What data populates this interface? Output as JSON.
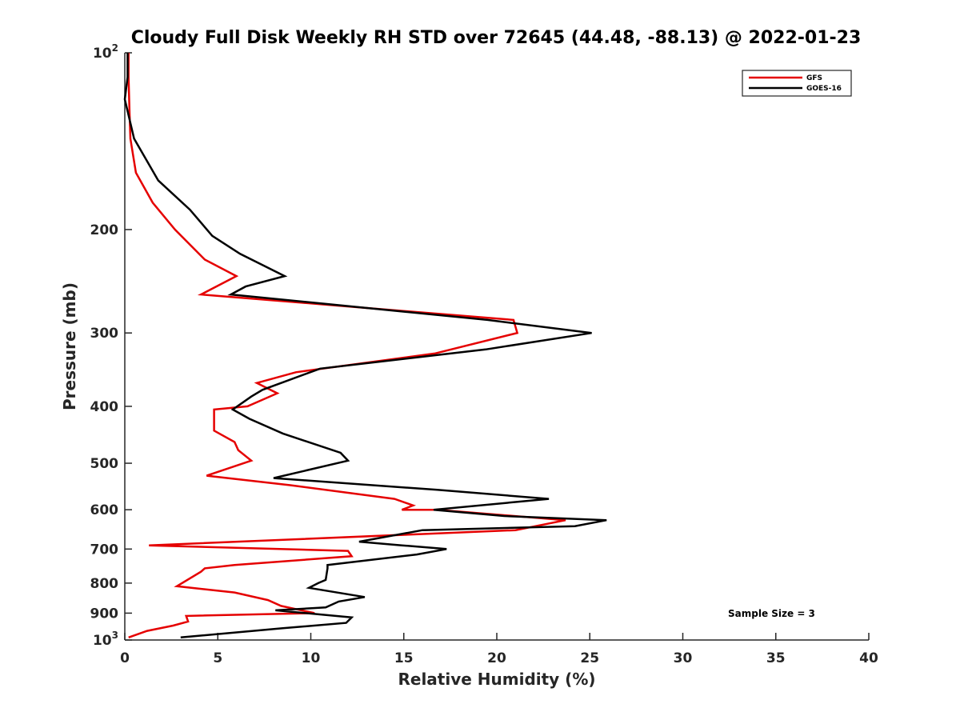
{
  "chart_data": {
    "type": "line",
    "title": "Cloudy Full Disk Weekly RH STD over 72645 (44.48, -88.13) @ 2022-01-23",
    "xlabel": "Relative Humidity (%)",
    "ylabel": "Pressure (mb)",
    "xlim": [
      0,
      40
    ],
    "ylim": [
      100,
      1000
    ],
    "y_scale": "log",
    "y_reversed": true,
    "grid": false,
    "legend_position": "top-right",
    "x_ticks": [
      "0",
      "5",
      "10",
      "15",
      "20",
      "25",
      "30",
      "35",
      "40"
    ],
    "y_ticks": [
      {
        "value": 100,
        "base": "10",
        "exp": "2"
      },
      {
        "value": 200,
        "label": "200"
      },
      {
        "value": 300,
        "label": "300"
      },
      {
        "value": 400,
        "label": "400"
      },
      {
        "value": 500,
        "label": "500"
      },
      {
        "value": 600,
        "label": "600"
      },
      {
        "value": 700,
        "label": "700"
      },
      {
        "value": 800,
        "label": "800"
      },
      {
        "value": 900,
        "label": "900"
      },
      {
        "value": 1000,
        "base": "10",
        "exp": "3"
      }
    ],
    "annotation": "Sample Size = 3",
    "series": [
      {
        "name": "GFS",
        "color": "#e50000",
        "points": [
          [
            0.2,
            100
          ],
          [
            0.2,
            110
          ],
          [
            0.25,
            125
          ],
          [
            0.3,
            140
          ],
          [
            0.6,
            160
          ],
          [
            1.5,
            180
          ],
          [
            2.7,
            200
          ],
          [
            4.3,
            225
          ],
          [
            6.0,
            240
          ],
          [
            4.1,
            258
          ],
          [
            20.9,
            285
          ],
          [
            21.1,
            300
          ],
          [
            16.7,
            325
          ],
          [
            9.2,
            350
          ],
          [
            7.1,
            365
          ],
          [
            8.2,
            380
          ],
          [
            6.6,
            400
          ],
          [
            4.8,
            405
          ],
          [
            4.8,
            420
          ],
          [
            4.8,
            440
          ],
          [
            5.9,
            460
          ],
          [
            6.1,
            475
          ],
          [
            6.8,
            495
          ],
          [
            4.4,
            525
          ],
          [
            8.9,
            545
          ],
          [
            14.5,
            575
          ],
          [
            15.5,
            590
          ],
          [
            14.9,
            600
          ],
          [
            16.8,
            600
          ],
          [
            23.7,
            625
          ],
          [
            21.0,
            650
          ],
          [
            1.3,
            690
          ],
          [
            12.0,
            705
          ],
          [
            12.2,
            720
          ],
          [
            5.9,
            745
          ],
          [
            4.3,
            755
          ],
          [
            4.1,
            765
          ],
          [
            2.8,
            810
          ],
          [
            5.9,
            830
          ],
          [
            7.7,
            855
          ],
          [
            8.4,
            875
          ],
          [
            10.2,
            900
          ],
          [
            3.3,
            910
          ],
          [
            3.4,
            930
          ],
          [
            2.6,
            945
          ],
          [
            1.2,
            965
          ],
          [
            0.2,
            990
          ]
        ]
      },
      {
        "name": "GOES-16",
        "color": "#000000",
        "points": [
          [
            0.15,
            100
          ],
          [
            0.15,
            110
          ],
          [
            0.0,
            120
          ],
          [
            0.5,
            140
          ],
          [
            1.8,
            165
          ],
          [
            3.5,
            185
          ],
          [
            4.7,
            205
          ],
          [
            6.2,
            220
          ],
          [
            8.6,
            240
          ],
          [
            6.5,
            250
          ],
          [
            5.7,
            258
          ],
          [
            19.5,
            285
          ],
          [
            25.1,
            300
          ],
          [
            19.4,
            320
          ],
          [
            10.5,
            345
          ],
          [
            7.4,
            375
          ],
          [
            6.8,
            385
          ],
          [
            5.8,
            405
          ],
          [
            6.7,
            420
          ],
          [
            8.5,
            445
          ],
          [
            11.6,
            480
          ],
          [
            12.0,
            495
          ],
          [
            8.0,
            530
          ],
          [
            16.8,
            555
          ],
          [
            22.8,
            575
          ],
          [
            16.6,
            600
          ],
          [
            20.4,
            615
          ],
          [
            25.9,
            625
          ],
          [
            24.2,
            640
          ],
          [
            16.0,
            650
          ],
          [
            12.6,
            680
          ],
          [
            14.9,
            690
          ],
          [
            17.3,
            700
          ],
          [
            15.7,
            715
          ],
          [
            10.9,
            745
          ],
          [
            10.9,
            755
          ],
          [
            10.8,
            790
          ],
          [
            10.4,
            800
          ],
          [
            9.9,
            815
          ],
          [
            12.9,
            845
          ],
          [
            11.5,
            860
          ],
          [
            10.8,
            880
          ],
          [
            8.1,
            890
          ],
          [
            12.2,
            915
          ],
          [
            11.9,
            935
          ],
          [
            8.5,
            955
          ],
          [
            3.0,
            990
          ]
        ]
      }
    ]
  }
}
